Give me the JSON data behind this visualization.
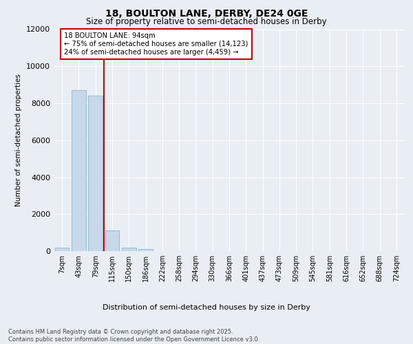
{
  "title": "18, BOULTON LANE, DERBY, DE24 0GE",
  "subtitle": "Size of property relative to semi-detached houses in Derby",
  "xlabel": "Distribution of semi-detached houses by size in Derby",
  "ylabel": "Number of semi-detached properties",
  "categories": [
    "7sqm",
    "43sqm",
    "79sqm",
    "115sqm",
    "150sqm",
    "186sqm",
    "222sqm",
    "258sqm",
    "294sqm",
    "330sqm",
    "366sqm",
    "401sqm",
    "437sqm",
    "473sqm",
    "509sqm",
    "545sqm",
    "581sqm",
    "616sqm",
    "652sqm",
    "688sqm",
    "724sqm"
  ],
  "values": [
    200,
    8700,
    8400,
    1100,
    200,
    100,
    0,
    0,
    0,
    0,
    0,
    0,
    0,
    0,
    0,
    0,
    0,
    0,
    0,
    0,
    0
  ],
  "bar_color": "#c8d8e8",
  "bar_edge_color": "#7aaac8",
  "bg_color": "#e8eef4",
  "grid_color": "#ffffff",
  "vline_x": 2.5,
  "vline_color": "#cc0000",
  "annotation_title": "18 BOULTON LANE: 94sqm",
  "annotation_line1": "← 75% of semi-detached houses are smaller (14,123)",
  "annotation_line2": "24% of semi-detached houses are larger (4,459) →",
  "annotation_box_color": "#cc0000",
  "footer_line1": "Contains HM Land Registry data © Crown copyright and database right 2025.",
  "footer_line2": "Contains public sector information licensed under the Open Government Licence v3.0.",
  "ylim": [
    0,
    12000
  ],
  "yticks": [
    0,
    2000,
    4000,
    6000,
    8000,
    10000,
    12000
  ]
}
